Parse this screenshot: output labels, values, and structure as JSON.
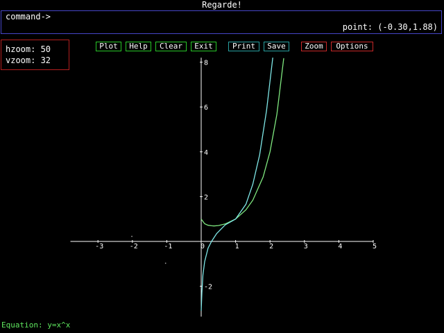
{
  "window": {
    "title": "Regarde!"
  },
  "command": {
    "prompt": "command->",
    "value": ""
  },
  "status": {
    "point": "point: (-0.30,1.88)"
  },
  "zoom": {
    "hzoom": "hzoom: 50",
    "vzoom": "vzoom: 32"
  },
  "toolbar": {
    "plot": "Plot",
    "help": "Help",
    "clear": "Clear",
    "exit": "Exit",
    "print": "Print",
    "save": "Save",
    "zoom": "Zoom",
    "options": "Options"
  },
  "equation": "Equation: y=x^x",
  "colors": {
    "cmd_border": "#4646c8",
    "zoom_border": "#b41e1e",
    "btn_green": "#28c828",
    "btn_teal": "#28a0a0",
    "btn_red": "#c82828",
    "curve_green": "#7fe87f",
    "curve_cyan": "#7fe8e8",
    "equation": "#5fe85f"
  },
  "chart_data": {
    "type": "line",
    "x_ticks": [
      "-3",
      "-2",
      "-1",
      "0",
      "1",
      "2",
      "3",
      "4",
      "5"
    ],
    "y_ticks": [
      "8",
      "6",
      "4",
      "2",
      "-2"
    ],
    "xlim": [
      -3.8,
      5
    ],
    "ylim": [
      -3.2,
      8.2
    ],
    "grid": false,
    "series": [
      {
        "name": "y=x^x",
        "points": [
          [
            0.0,
            1.0
          ],
          [
            0.1,
            0.79
          ],
          [
            0.2,
            0.72
          ],
          [
            0.3,
            0.7
          ],
          [
            0.37,
            0.69
          ],
          [
            0.5,
            0.71
          ],
          [
            0.7,
            0.78
          ],
          [
            1.0,
            1.0
          ],
          [
            1.3,
            1.41
          ],
          [
            1.5,
            1.84
          ],
          [
            1.8,
            2.88
          ],
          [
            2.0,
            4.0
          ],
          [
            2.2,
            5.67
          ],
          [
            2.4,
            8.18
          ]
        ]
      },
      {
        "name": "",
        "points": [
          [
            0.0,
            -3.1
          ],
          [
            0.02,
            -2.3
          ],
          [
            0.05,
            -1.5
          ],
          [
            0.1,
            -0.9
          ],
          [
            0.2,
            -0.3
          ],
          [
            0.3,
            0.0
          ],
          [
            0.45,
            0.35
          ],
          [
            0.7,
            0.74
          ],
          [
            1.0,
            1.0
          ],
          [
            1.3,
            1.66
          ],
          [
            1.5,
            2.55
          ],
          [
            1.7,
            3.87
          ],
          [
            1.9,
            5.84
          ],
          [
            2.08,
            8.2
          ]
        ]
      }
    ],
    "stray_points": [
      [
        -2.03,
        0.25
      ],
      [
        -1.05,
        -0.95
      ]
    ]
  }
}
